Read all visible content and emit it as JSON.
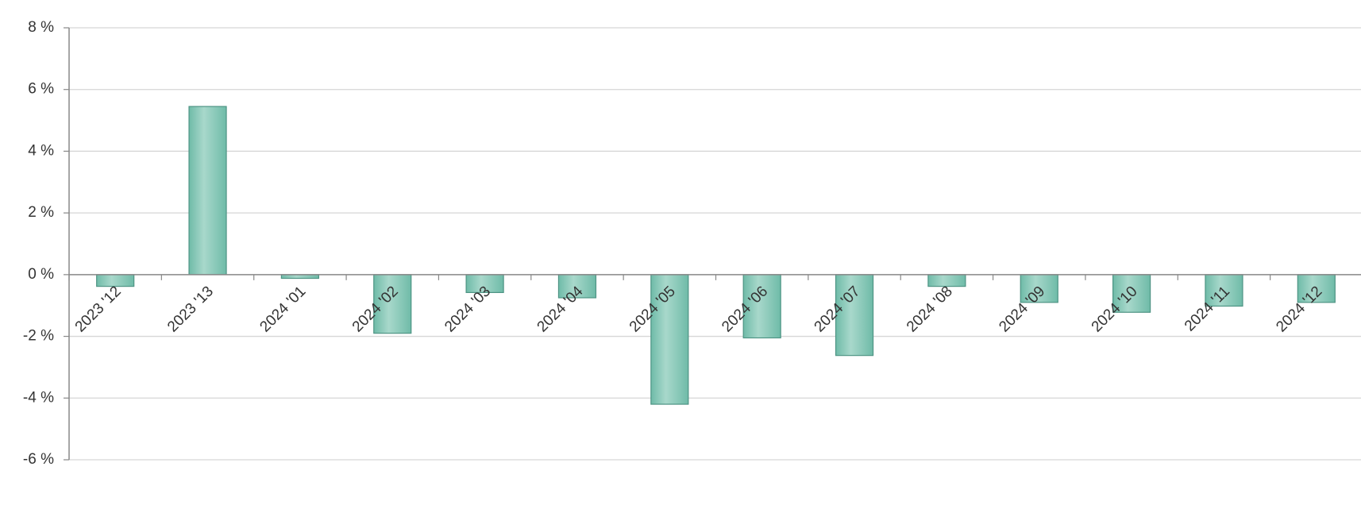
{
  "chart_data": {
    "type": "bar",
    "categories": [
      "2023 '12",
      "2023 '13",
      "2024 '01",
      "2024 '02",
      "2024 '03",
      "2024 '04",
      "2024 '05",
      "2024 '06",
      "2024 '07",
      "2024 '08",
      "2024 '09",
      "2024 '10",
      "2024 '11",
      "2024 '12"
    ],
    "values": [
      -0.38,
      5.45,
      -0.12,
      -1.9,
      -0.58,
      -0.75,
      -4.2,
      -2.05,
      -2.62,
      -0.38,
      -0.9,
      -1.22,
      -1.02,
      -0.9
    ],
    "title": "",
    "xlabel": "",
    "ylabel": "",
    "ylim": [
      -6,
      8
    ],
    "yticks": [
      8,
      6,
      4,
      2,
      0,
      -2,
      -4,
      -6
    ],
    "y_tick_labels": [
      "8 %",
      "6 %",
      "4 %",
      "2 %",
      "0 %",
      "-2 %",
      "-4 %",
      "-6 %"
    ],
    "grid": true,
    "legend": "none",
    "colors": {
      "bar_light": "#a8d8cb",
      "bar_dark": "#6fbba8",
      "bar_border": "#4e9484",
      "grid": "#d6d6d6",
      "axis": "#888888",
      "text": "#333333"
    }
  }
}
